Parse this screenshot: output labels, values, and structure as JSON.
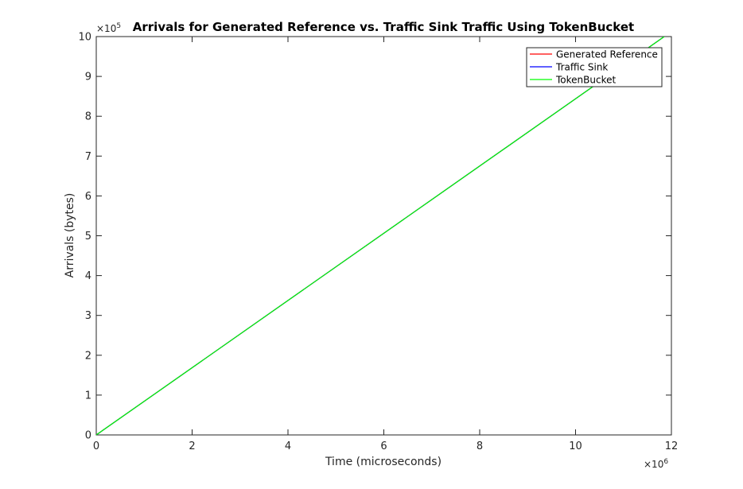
{
  "chart_data": {
    "type": "line",
    "title": "Arrivals for Generated Reference vs. Traffic Sink Traffic Using TokenBucket",
    "xlabel": "Time (microseconds)",
    "ylabel": "Arrivals (bytes)",
    "x_exponent_label": "×10",
    "x_exponent_power": "6",
    "y_exponent_label": "×10",
    "y_exponent_power": "5",
    "x_scale": 1000000,
    "y_scale": 100000,
    "xlim": [
      0,
      12000000
    ],
    "ylim": [
      0,
      1000000
    ],
    "x_ticks": [
      0,
      2000000,
      4000000,
      6000000,
      8000000,
      10000000,
      12000000
    ],
    "x_tick_labels": [
      "0",
      "2",
      "4",
      "6",
      "8",
      "10",
      "12"
    ],
    "y_ticks": [
      0,
      100000,
      200000,
      300000,
      400000,
      500000,
      600000,
      700000,
      800000,
      900000,
      1000000
    ],
    "y_tick_labels": [
      "0",
      "1",
      "2",
      "3",
      "4",
      "5",
      "6",
      "7",
      "8",
      "9",
      "10"
    ],
    "grid": false,
    "legend_position": "top-right",
    "series": [
      {
        "name": "Generated Reference",
        "color": "#ff0000",
        "x": [
          0,
          11850000
        ],
        "y": [
          0,
          1000000
        ]
      },
      {
        "name": "Traffic Sink",
        "color": "#0000ff",
        "x": [
          0,
          11850000
        ],
        "y": [
          0,
          1000000
        ]
      },
      {
        "name": "TokenBucket",
        "color": "#00ff00",
        "x": [
          0,
          11850000
        ],
        "y": [
          0,
          1000000
        ]
      }
    ]
  }
}
